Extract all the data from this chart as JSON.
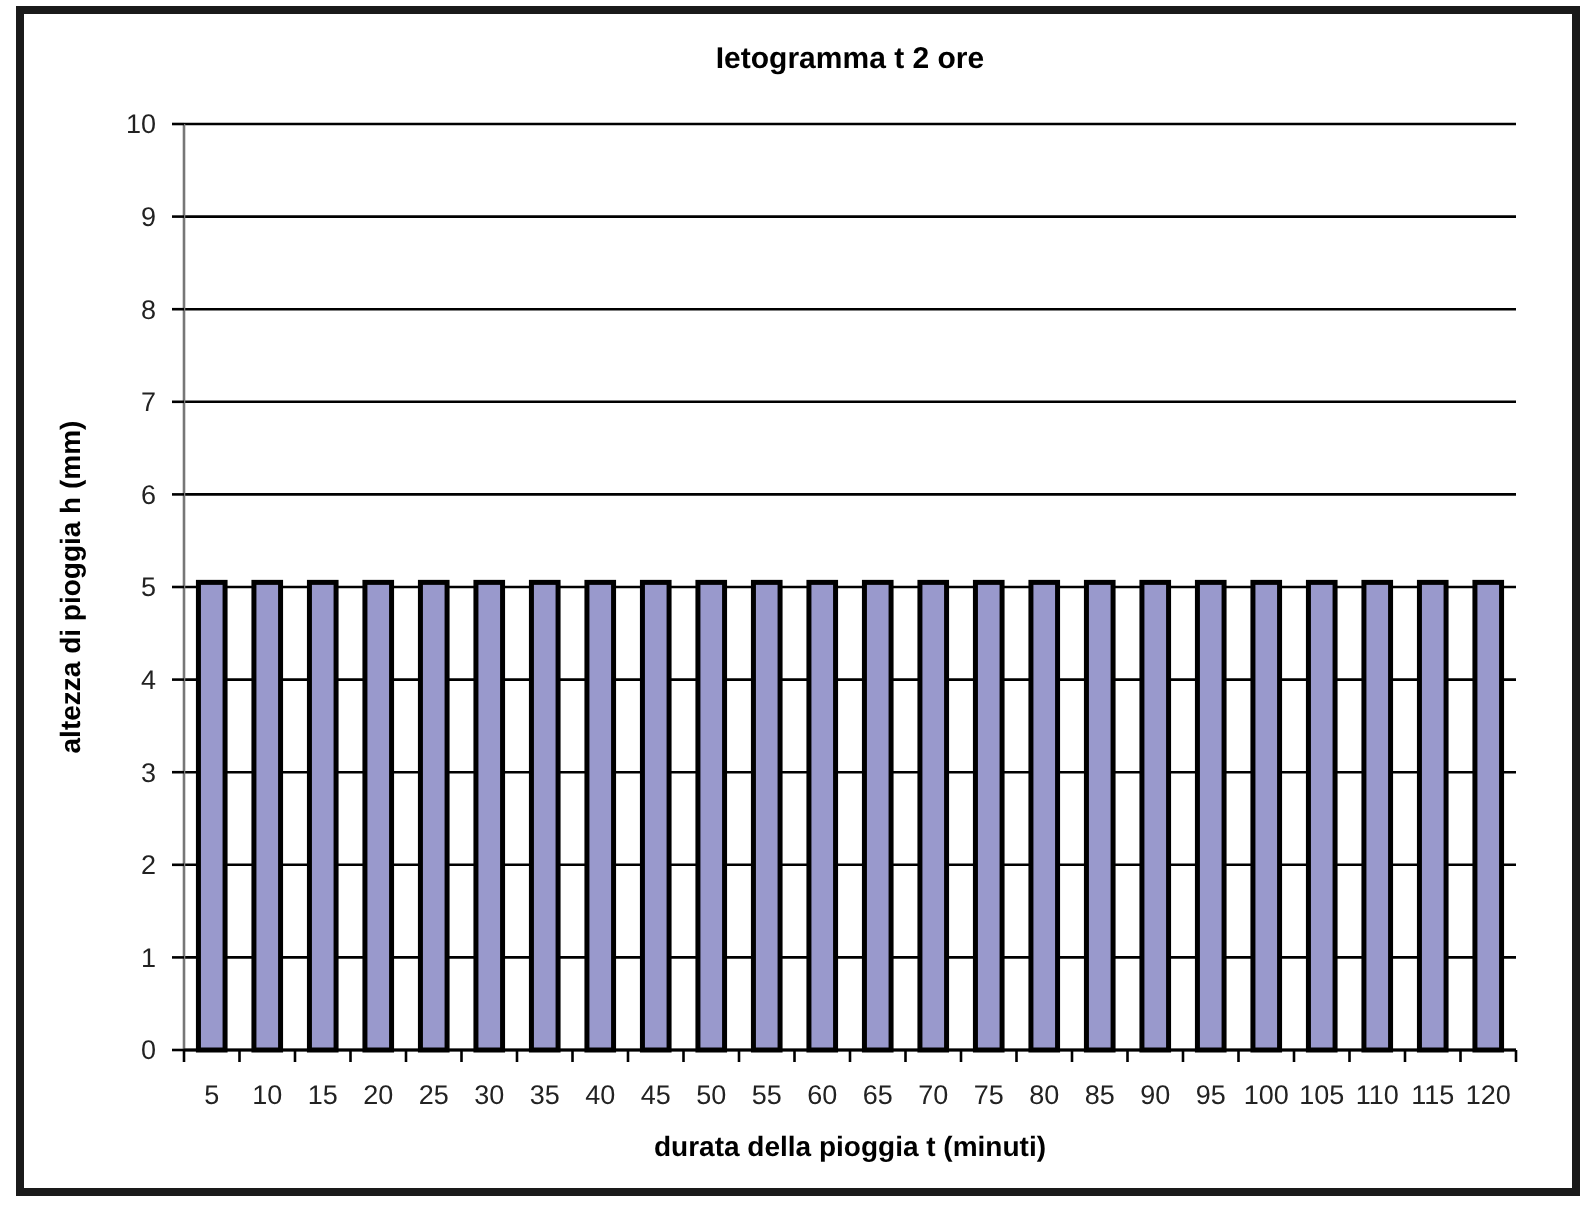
{
  "chart_data": {
    "type": "bar",
    "title": "Ietogramma t 2 ore",
    "xlabel": "durata della pioggia t (minuti)",
    "ylabel": "altezza di pioggia h (mm)",
    "categories": [
      "5",
      "10",
      "15",
      "20",
      "25",
      "30",
      "35",
      "40",
      "45",
      "50",
      "55",
      "60",
      "65",
      "70",
      "75",
      "80",
      "85",
      "90",
      "95",
      "100",
      "105",
      "110",
      "115",
      "120"
    ],
    "values": [
      5.05,
      5.05,
      5.05,
      5.05,
      5.05,
      5.05,
      5.05,
      5.05,
      5.05,
      5.05,
      5.05,
      5.05,
      5.05,
      5.05,
      5.05,
      5.05,
      5.05,
      5.05,
      5.05,
      5.05,
      5.05,
      5.05,
      5.05,
      5.05
    ],
    "color": "#9999cc",
    "ylim": [
      0,
      10
    ],
    "yticks": [
      0,
      1,
      2,
      3,
      4,
      5,
      6,
      7,
      8,
      9,
      10
    ],
    "grid": "y"
  }
}
